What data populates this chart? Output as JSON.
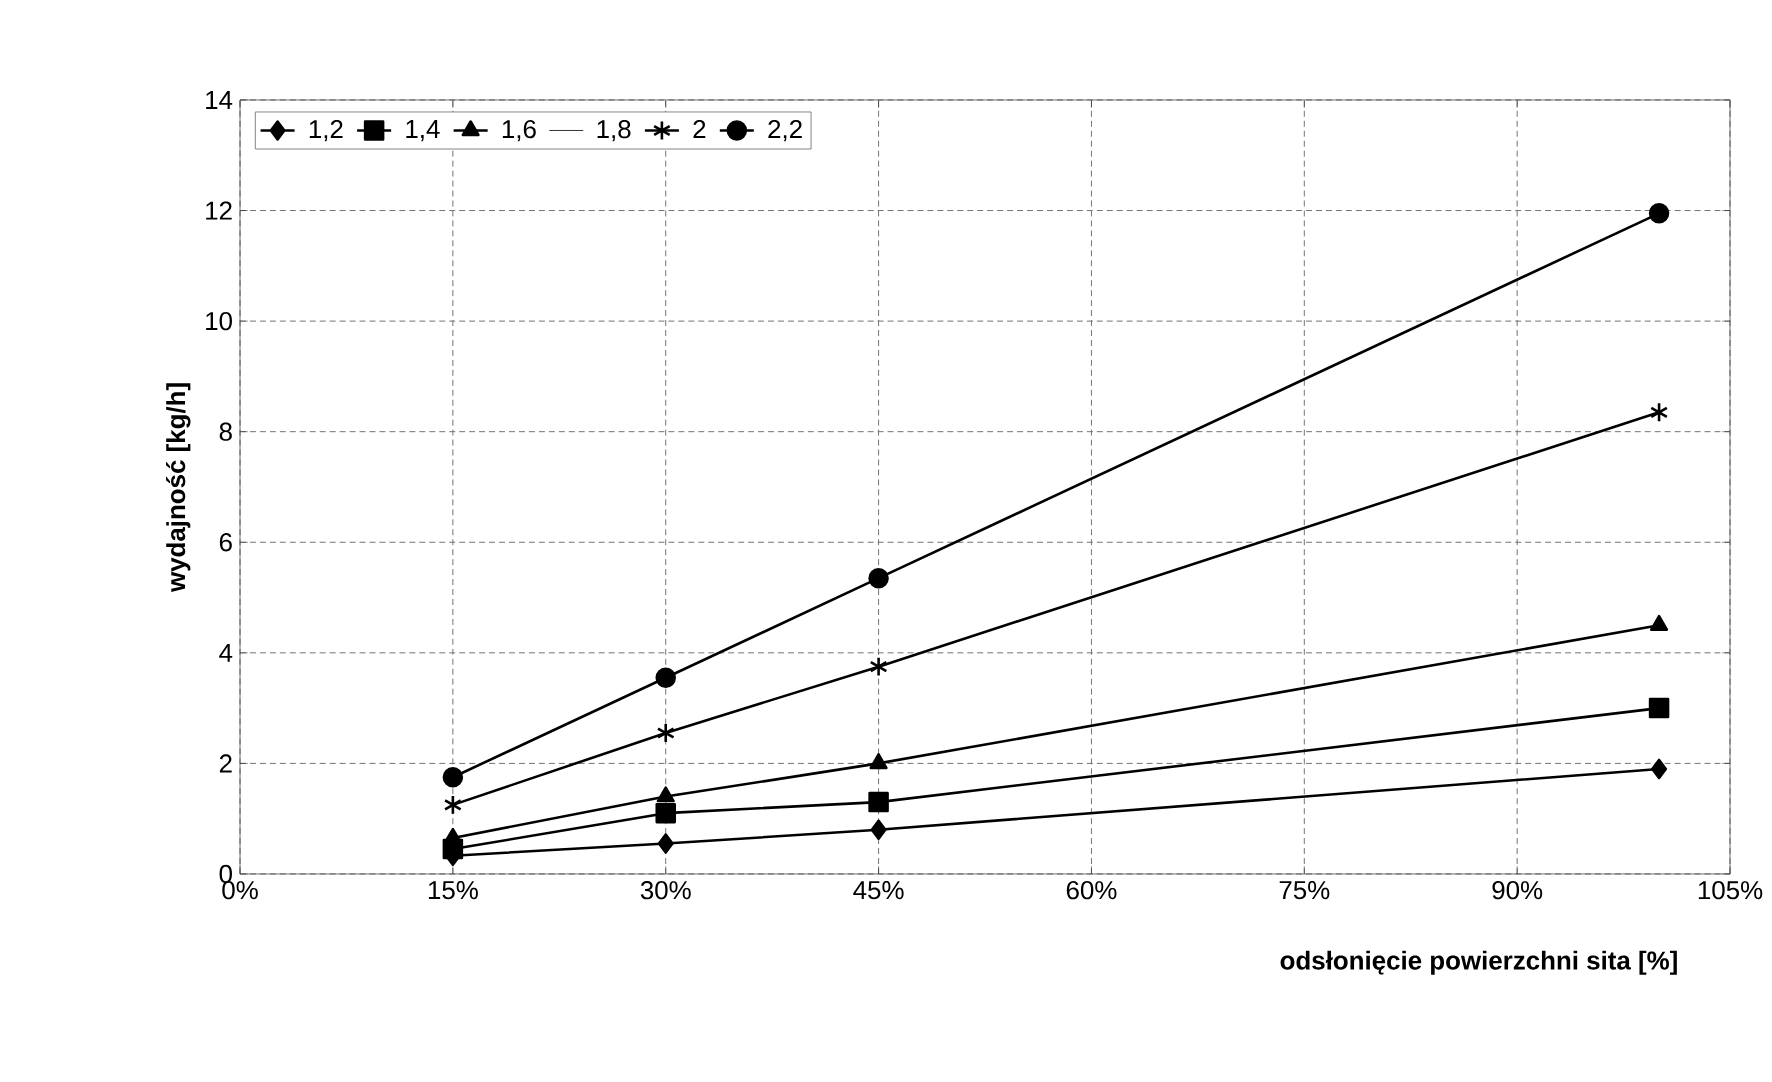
{
  "chart_data": {
    "type": "line",
    "xlabel": "odsłonięcie powierzchni sita [%]",
    "ylabel": "wydajność  [kg/h]",
    "x": [
      15,
      30,
      45,
      100
    ],
    "series": [
      {
        "name": "1,2",
        "color": "#000000",
        "marker": "diamond",
        "values": [
          0.33,
          0.55,
          0.8,
          1.9
        ]
      },
      {
        "name": "1,4",
        "color": "#000000",
        "marker": "square",
        "values": [
          0.45,
          1.1,
          1.3,
          3.0
        ]
      },
      {
        "name": "1,6",
        "color": "#000000",
        "marker": "triangle",
        "values": [
          0.65,
          1.4,
          2.0,
          4.5
        ]
      },
      {
        "name": "1,8",
        "values": [
          null,
          null,
          null,
          null
        ]
      },
      {
        "name": "2",
        "color": "#000000",
        "marker": "cross",
        "values": [
          1.25,
          2.55,
          3.75,
          8.35
        ]
      },
      {
        "name": "2,2",
        "color": "#000000",
        "marker": "circle",
        "values": [
          1.75,
          3.55,
          5.35,
          11.95
        ]
      }
    ],
    "xlim": [
      0,
      105
    ],
    "xticks": [
      {
        "value": 0,
        "label": "0%"
      },
      {
        "value": 15,
        "label": "15%"
      },
      {
        "value": 30,
        "label": "30%"
      },
      {
        "value": 45,
        "label": "45%"
      },
      {
        "value": 60,
        "label": "60%"
      },
      {
        "value": 75,
        "label": "75%"
      },
      {
        "value": 90,
        "label": "90%"
      },
      {
        "value": 105,
        "label": "105%"
      }
    ],
    "ylim": [
      0,
      14
    ],
    "yticks": [
      0,
      2,
      4,
      6,
      8,
      10,
      12,
      14
    ],
    "grid": true,
    "legend": "top left"
  }
}
